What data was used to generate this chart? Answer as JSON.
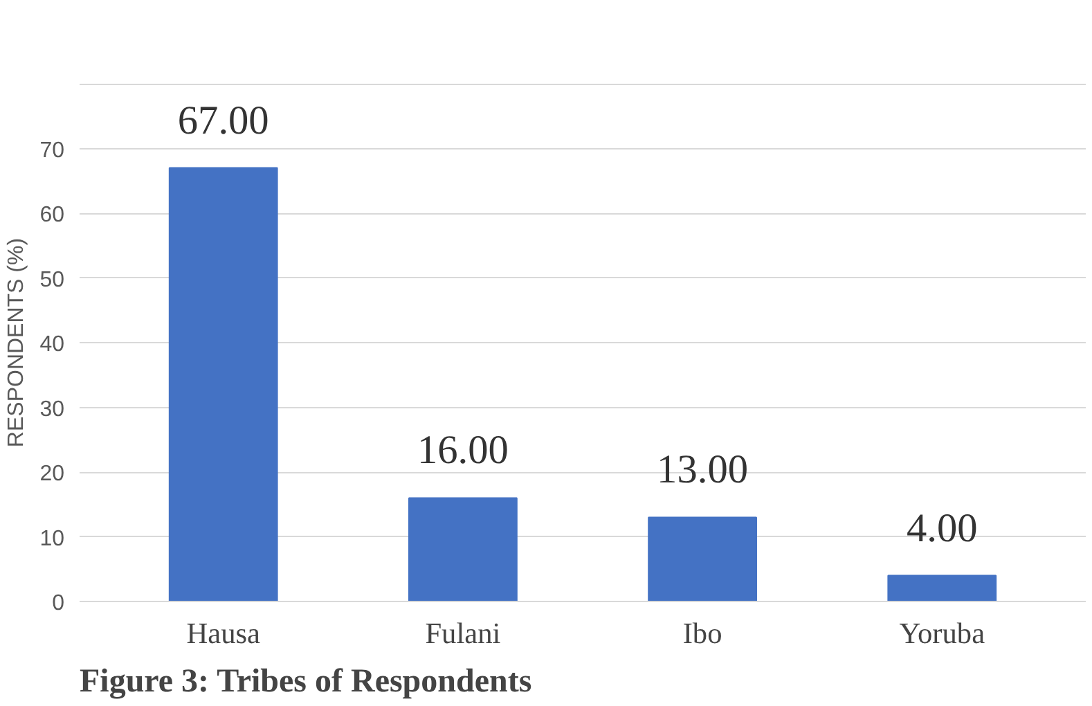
{
  "chart_data": {
    "type": "bar",
    "title": "Figure 3:  Tribes of Respondents",
    "ylabel": "RESPONDENTS (%)",
    "categories": [
      "Hausa",
      "Fulani",
      "Ibo",
      "Yoruba"
    ],
    "values": [
      67,
      16,
      13,
      4
    ],
    "color": "#4472c4",
    "value_labels": [
      "67.00",
      "16.00",
      "13.00",
      "4.00"
    ],
    "ylim": [
      0,
      80
    ],
    "yticks": [
      0,
      10,
      20,
      30,
      40,
      50,
      60,
      70,
      {
        "value": 80,
        "label": null
      }
    ],
    "grid": "y"
  }
}
